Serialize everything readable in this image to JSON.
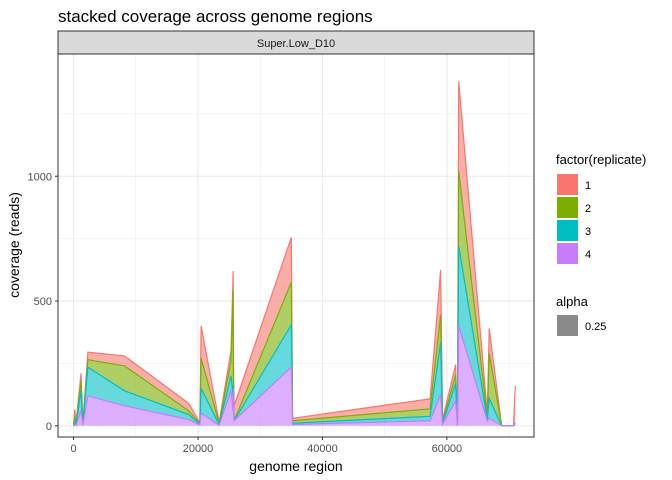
{
  "chart_data": {
    "type": "area",
    "stacked": true,
    "title": "stacked coverage across genome regions",
    "facet": "Super.Low_D10",
    "xlabel": "genome region",
    "ylabel": "coverage (reads)",
    "xlim": [
      -2500,
      74000
    ],
    "ylim": [
      -45,
      1490
    ],
    "x_ticks": [
      0,
      20000,
      40000,
      60000
    ],
    "x_tick_labels": [
      "0",
      "20000",
      "40000",
      "60000"
    ],
    "y_ticks": [
      0,
      500,
      1000
    ],
    "y_tick_labels": [
      "0",
      "500",
      "1000"
    ],
    "grid": true,
    "fill_alpha": 0.6,
    "legend": {
      "position": "right",
      "fill_title": "factor(replicate)",
      "alpha_title": "alpha",
      "alpha_label": "0.25"
    },
    "x": [
      0,
      200,
      400,
      1200,
      1500,
      2300,
      8200,
      18500,
      20300,
      20500,
      23400,
      25300,
      25650,
      25700,
      25800,
      35000,
      35200,
      57300,
      59000,
      59300,
      61400,
      61700,
      61900,
      66500,
      66800,
      68800,
      70700,
      71000
    ],
    "series": [
      {
        "name": "1",
        "color": "#F8766D",
        "values": [
          0,
          30,
          5,
          30,
          3,
          30,
          40,
          30,
          3,
          130,
          5,
          40,
          80,
          110,
          60,
          180,
          10,
          40,
          180,
          10,
          40,
          1,
          360,
          15,
          100,
          0,
          0,
          150
        ]
      },
      {
        "name": "2",
        "color": "#7CAE00",
        "values": [
          0,
          20,
          5,
          40,
          3,
          30,
          100,
          15,
          3,
          120,
          5,
          60,
          420,
          0,
          0,
          170,
          10,
          30,
          110,
          5,
          35,
          1,
          300,
          10,
          180,
          0,
          0,
          0
        ]
      },
      {
        "name": "3",
        "color": "#00BFC4",
        "values": [
          0,
          10,
          2,
          80,
          3,
          115,
          60,
          20,
          3,
          100,
          3,
          60,
          60,
          10,
          0,
          170,
          5,
          18,
          210,
          5,
          70,
          1,
          320,
          5,
          80,
          0,
          0,
          0
        ]
      },
      {
        "name": "4",
        "color": "#C77CFF",
        "values": [
          0,
          5,
          2,
          60,
          3,
          120,
          80,
          25,
          3,
          50,
          2,
          140,
          60,
          150,
          20,
          235,
          5,
          20,
          125,
          5,
          100,
          1,
          400,
          20,
          30,
          0,
          0,
          10
        ]
      }
    ]
  }
}
